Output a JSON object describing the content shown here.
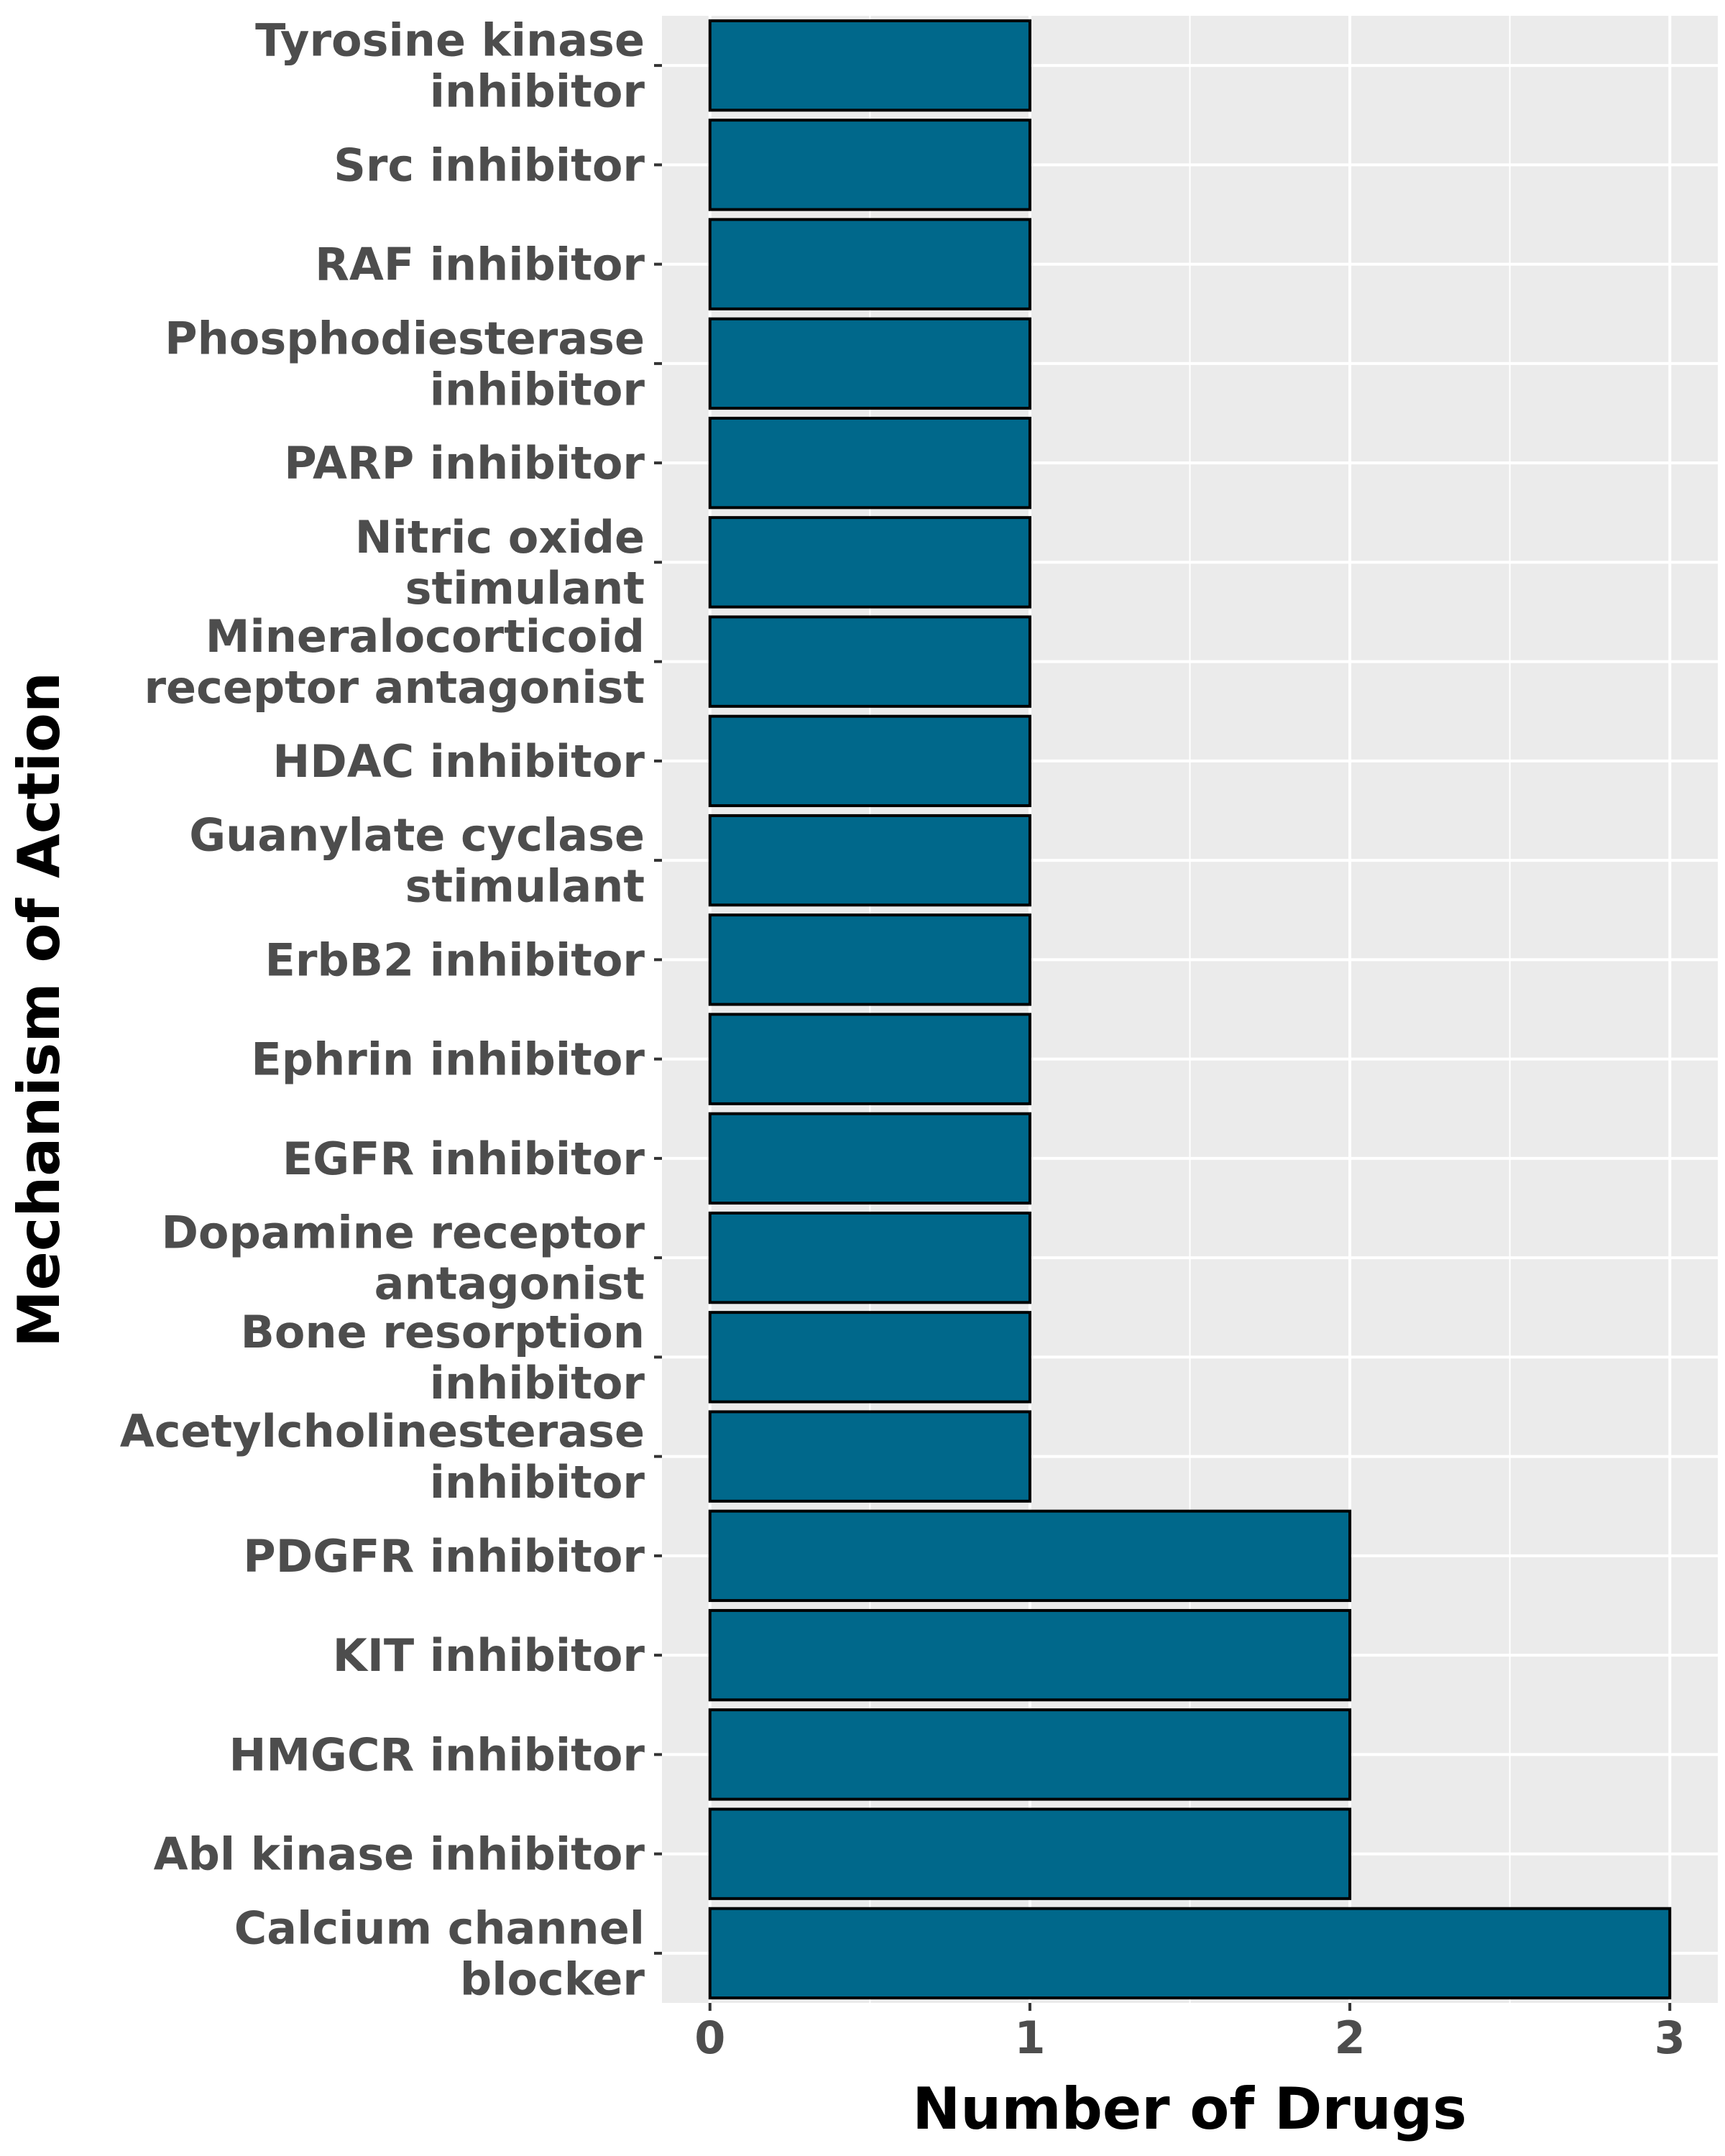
{
  "chart_data": {
    "type": "bar",
    "orientation": "horizontal",
    "categories": [
      "Tyrosine kinase inhibitor",
      "Src inhibitor",
      "RAF inhibitor",
      "Phosphodiesterase inhibitor",
      "PARP inhibitor",
      "Nitric oxide stimulant",
      "Mineralocorticoid receptor antagonist",
      "HDAC inhibitor",
      "Guanylate cyclase stimulant",
      "ErbB2 inhibitor",
      "Ephrin inhibitor",
      "EGFR inhibitor",
      "Dopamine receptor antagonist",
      "Bone resorption inhibitor",
      "Acetylcholinesterase inhibitor",
      "PDGFR inhibitor",
      "KIT inhibitor",
      "HMGCR inhibitor",
      "Abl kinase inhibitor",
      "Calcium channel blocker"
    ],
    "category_label_lines": [
      [
        "Tyrosine kinase",
        "inhibitor"
      ],
      [
        "Src inhibitor"
      ],
      [
        "RAF inhibitor"
      ],
      [
        "Phosphodiesterase",
        "inhibitor"
      ],
      [
        "PARP inhibitor"
      ],
      [
        "Nitric oxide",
        "stimulant"
      ],
      [
        "Mineralocorticoid",
        "receptor antagonist"
      ],
      [
        "HDAC inhibitor"
      ],
      [
        "Guanylate cyclase",
        "stimulant"
      ],
      [
        "ErbB2 inhibitor"
      ],
      [
        "Ephrin inhibitor"
      ],
      [
        "EGFR inhibitor"
      ],
      [
        "Dopamine receptor",
        "antagonist"
      ],
      [
        "Bone resorption",
        "inhibitor"
      ],
      [
        "Acetylcholinesterase",
        "inhibitor"
      ],
      [
        "PDGFR inhibitor"
      ],
      [
        "KIT inhibitor"
      ],
      [
        "HMGCR inhibitor"
      ],
      [
        "Abl kinase inhibitor"
      ],
      [
        "Calcium channel",
        "blocker"
      ]
    ],
    "values": [
      1,
      1,
      1,
      1,
      1,
      1,
      1,
      1,
      1,
      1,
      1,
      1,
      1,
      1,
      1,
      2,
      2,
      2,
      2,
      3
    ],
    "xlabel": "Number of Drugs",
    "ylabel": "Mechanism of Action",
    "xlim": [
      -0.15,
      3.15
    ],
    "xticks": [
      0,
      1,
      2,
      3
    ],
    "grid": true,
    "legend": "none",
    "colors": {
      "bar_fill": "#00688b",
      "bar_stroke": "#000000",
      "panel_background": "#ebebeb",
      "grid": "#ffffff"
    }
  }
}
